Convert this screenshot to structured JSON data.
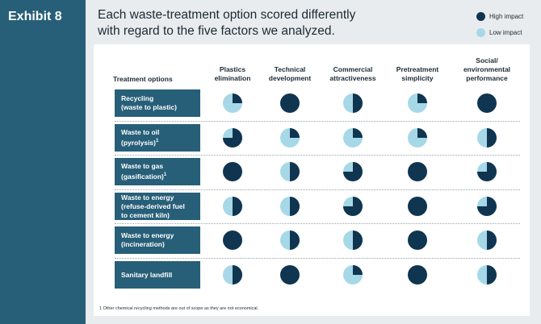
{
  "exhibit_label": "Exhibit 8",
  "headline": {
    "line1": "Each waste-treatment option scored differently",
    "line2": "with regard to the five factors we analyzed."
  },
  "legend": {
    "high": "High impact",
    "low": "Low impact"
  },
  "colors": {
    "high": "#0f3550",
    "low": "#a6d8e8",
    "sidebar": "#275f78"
  },
  "footnote": "1 Other chemical recycling methods are out of scope as they are not economical.",
  "chart_data": {
    "type": "table",
    "row_header": "Treatment options",
    "columns": [
      [
        "Plastics",
        "elimination"
      ],
      [
        "Technical",
        "development"
      ],
      [
        "Commercial",
        "attractiveness"
      ],
      [
        "Pretreatment",
        "simplicity"
      ],
      [
        "Social/",
        "environmental",
        "performance"
      ]
    ],
    "rows": [
      {
        "label": [
          "Recycling",
          "(waste to plastic)"
        ],
        "sup": "",
        "scores": [
          0.25,
          1,
          0.5,
          0.25,
          1
        ]
      },
      {
        "label": [
          "Waste to oil",
          "(pyrolysis)"
        ],
        "sup": "1",
        "scores": [
          0.75,
          0.25,
          0.25,
          0.25,
          0.5
        ]
      },
      {
        "label": [
          "Waste to gas",
          "(gasification)"
        ],
        "sup": "1",
        "scores": [
          1,
          0.5,
          0.75,
          1,
          0.75
        ]
      },
      {
        "label": [
          "Waste to energy",
          "(refuse-derived fuel",
          "to cement kiln)"
        ],
        "sup": "",
        "scores": [
          0.5,
          0.5,
          0.75,
          1,
          0.75
        ]
      },
      {
        "label": [
          "Waste to energy",
          "(incineration)"
        ],
        "sup": "",
        "scores": [
          1,
          0.5,
          0.5,
          1,
          0.5
        ]
      },
      {
        "label": [
          "Sanitary landfill"
        ],
        "sup": "",
        "scores": [
          0.5,
          1,
          0.25,
          1,
          0.5
        ]
      }
    ],
    "legend": [
      {
        "name": "High impact"
      },
      {
        "name": "Low impact"
      }
    ]
  }
}
